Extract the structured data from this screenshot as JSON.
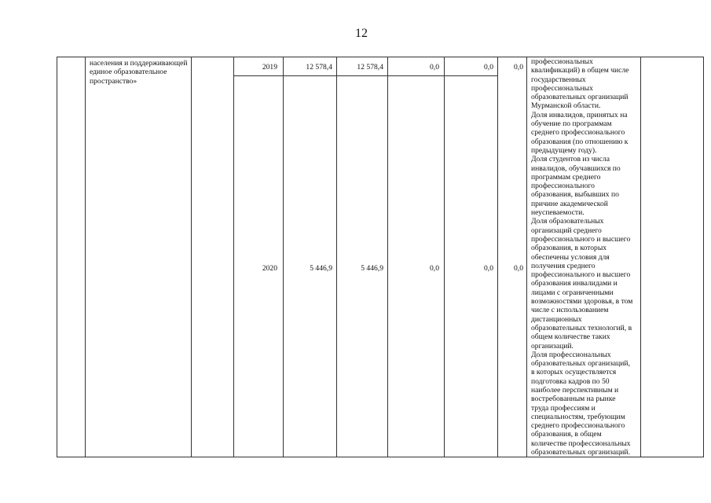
{
  "page_number": "12",
  "row_label": "населения и поддерживающей единое образовательное пространство»",
  "rows": [
    {
      "year": "2019",
      "total": "12 578,4",
      "regional": "12 578,4",
      "c1": "0,0",
      "c2": "0,0",
      "c3": "0,0"
    },
    {
      "year": "2020",
      "total": "5 446,9",
      "regional": "5 446,9",
      "c1": "0,0",
      "c2": "0,0",
      "c3": "0,0"
    }
  ],
  "indicators_lines": [
    "профессиональных",
    "квалификаций) в общем числе",
    "государственных",
    "профессиональных",
    "образовательных организаций",
    "Мурманской области.",
    "Доля инвалидов, принятых на",
    "обучение по программам",
    "среднего профессионального",
    "образования (по отношению к",
    "предыдущему году).",
    "Доля студентов из числа",
    "инвалидов, обучавшихся по",
    "программам среднего",
    "профессионального",
    "образования, выбывших по",
    "причине академической",
    "неуспеваемости.",
    "Доля образовательных",
    "организаций среднего",
    "профессионального и высшего",
    "образования, в которых",
    "обеспечены условия для",
    "получения среднего",
    "профессионального и высшего",
    "образования инвалидами и",
    "лицами с ограниченными",
    "возможностями здоровья, в том",
    "числе с использованием",
    "дистанционных",
    "образовательных технологий, в",
    "общем количестве таких",
    "организаций.",
    "Доля профессиональных",
    "образовательных организаций,",
    "в которых осуществляется",
    "подготовка кадров по 50",
    "наиболее перспективным и",
    "востребованным на рынке",
    "труда профессиям и",
    "специальностям, требующим",
    "среднего профессионального",
    "образования, в общем",
    "количестве профессиональных",
    "образовательных организаций."
  ]
}
